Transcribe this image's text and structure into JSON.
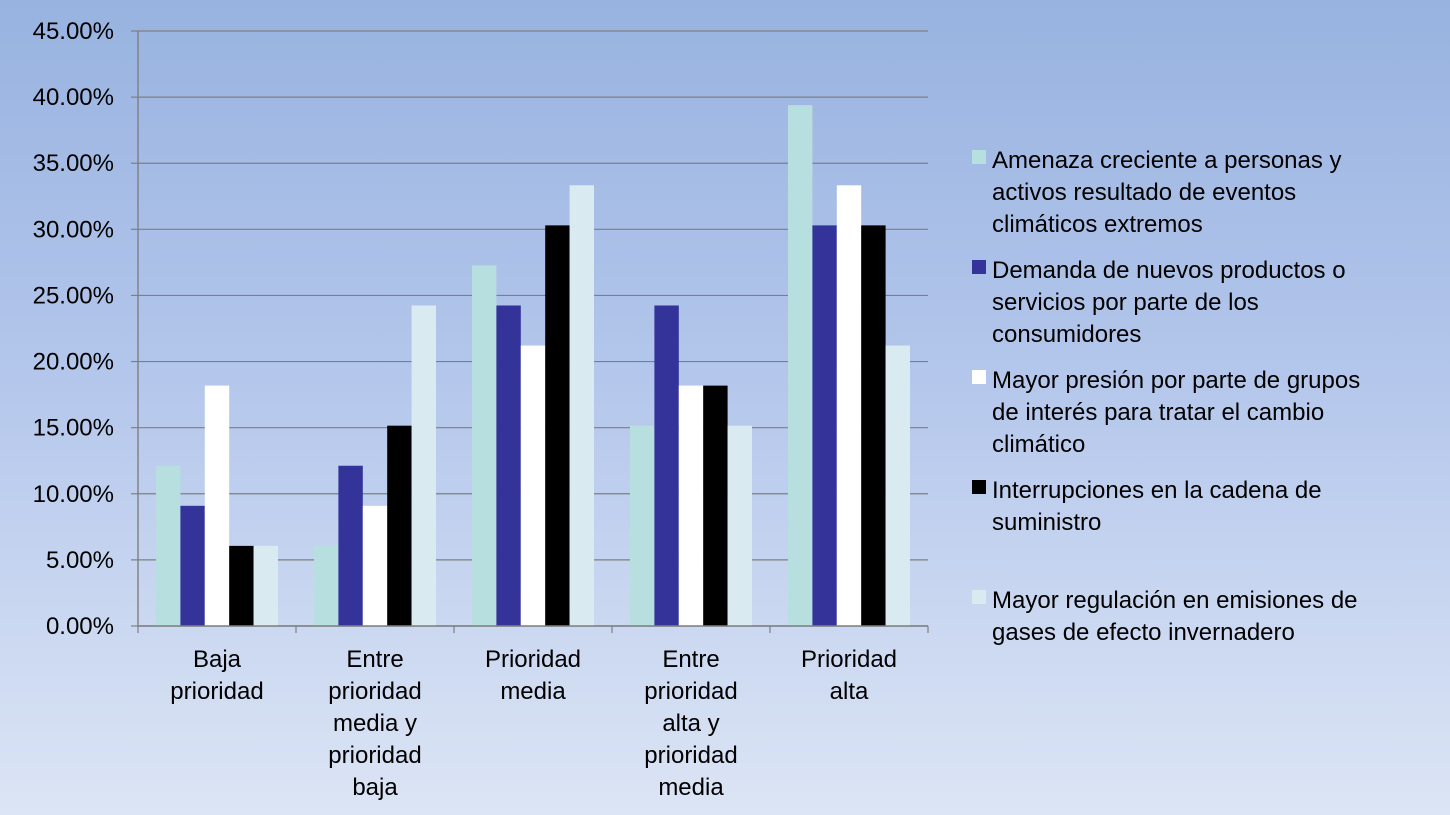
{
  "chart_data": {
    "type": "bar",
    "categories": [
      [
        "Baja",
        "prioridad"
      ],
      [
        "Entre",
        "prioridad",
        "media y",
        "prioridad",
        "baja"
      ],
      [
        "Prioridad",
        "media"
      ],
      [
        "Entre",
        "prioridad",
        "alta y",
        "prioridad",
        "media"
      ],
      [
        "Prioridad",
        "alta"
      ]
    ],
    "series": [
      {
        "name": [
          "Amenaza creciente a personas y",
          "activos resultado de eventos",
          "climáticos extremos"
        ],
        "color": "#b7dfe0",
        "values": [
          12.12,
          6.06,
          27.27,
          15.15,
          39.39
        ]
      },
      {
        "name": [
          "Demanda de nuevos productos o",
          "servicios por parte de los",
          "consumidores"
        ],
        "color": "#33339a",
        "values": [
          9.09,
          12.12,
          24.24,
          24.24,
          30.3
        ]
      },
      {
        "name": [
          "Mayor presión por parte de grupos",
          "de interés para tratar el cambio",
          "climático"
        ],
        "color": "#ffffff",
        "values": [
          18.18,
          9.09,
          21.21,
          18.18,
          33.33
        ]
      },
      {
        "name": [
          "Interrupciones en la cadena de",
          "suministro"
        ],
        "color": "#000000",
        "values": [
          6.06,
          15.15,
          30.3,
          18.18,
          30.3
        ]
      },
      {
        "name": [
          "Mayor regulación en emisiones de",
          "gases de efecto invernadero"
        ],
        "color": "#d9ebf1",
        "values": [
          6.06,
          24.24,
          33.33,
          15.15,
          21.21
        ]
      }
    ],
    "yticks": [
      "0.00%",
      "5.00%",
      "10.00%",
      "15.00%",
      "20.00%",
      "25.00%",
      "30.00%",
      "35.00%",
      "40.00%",
      "45.00%"
    ],
    "ylim": [
      0,
      45
    ],
    "grid": true,
    "legend_position": "right"
  }
}
